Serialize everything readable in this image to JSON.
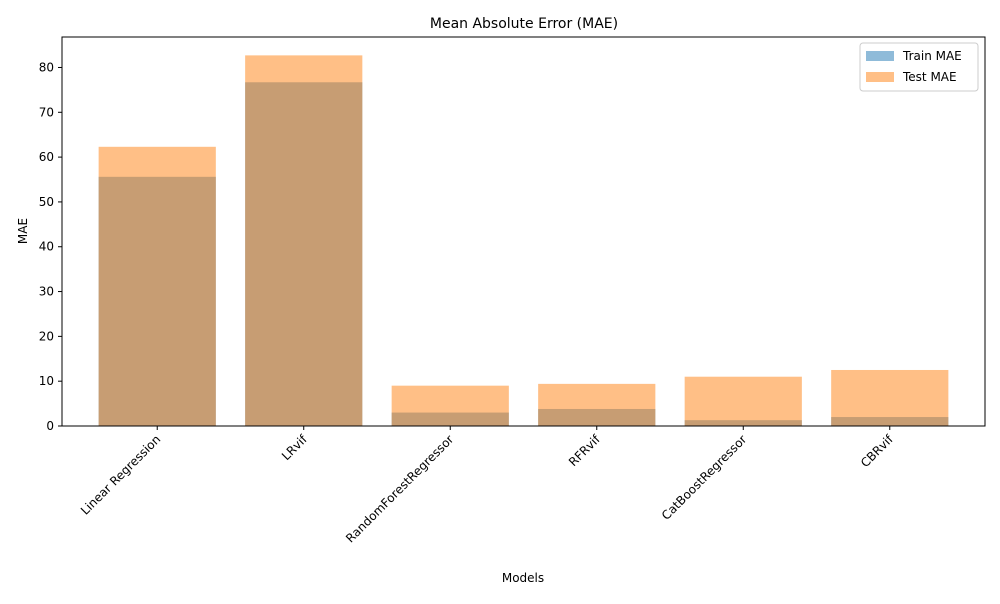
{
  "chart_data": {
    "type": "bar",
    "title": "Mean Absolute Error (MAE)",
    "xlabel": "Models",
    "ylabel": "MAE",
    "categories": [
      "Linear Regression",
      "LRvif",
      "RandomForestRegressor",
      "RFRvif",
      "CatBoostRegressor",
      "CBRvif"
    ],
    "series": [
      {
        "name": "Train MAE",
        "values": [
          55.6,
          76.7,
          3.0,
          3.8,
          1.3,
          2.0
        ],
        "color": "#1f77b4",
        "opacity": 0.5
      },
      {
        "name": "Test MAE",
        "values": [
          62.3,
          82.7,
          9.0,
          9.4,
          11.0,
          12.5
        ],
        "color": "#ff7f0e",
        "opacity": 0.5
      }
    ],
    "ylim": [
      0,
      86.8
    ],
    "yticks": [
      "0",
      "10",
      "20",
      "30",
      "40",
      "50",
      "60",
      "70",
      "80"
    ],
    "grid": false,
    "legend_position": "top-right",
    "overlaid_bars": true
  }
}
